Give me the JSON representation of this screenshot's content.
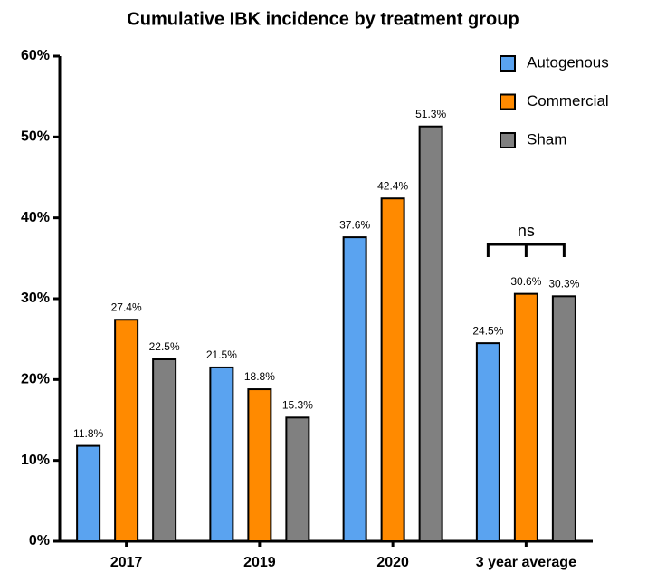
{
  "chart_data": {
    "type": "bar",
    "title": "Cumulative IBK incidence by treatment group",
    "categories": [
      "2017",
      "2019",
      "2020",
      "3 year average"
    ],
    "series": [
      {
        "name": "Autogenous",
        "color": "#5aa3f0",
        "values": [
          11.8,
          21.5,
          37.6,
          24.5
        ],
        "value_labels": [
          "11.8%",
          "21.5%",
          "37.6%",
          "24.5%"
        ]
      },
      {
        "name": "Commercial",
        "color": "#ff8a00",
        "values": [
          27.4,
          18.8,
          42.4,
          30.6
        ],
        "value_labels": [
          "27.4%",
          "18.8%",
          "42.4%",
          "30.6%"
        ]
      },
      {
        "name": "Sham",
        "color": "#808080",
        "values": [
          22.5,
          15.3,
          51.3,
          30.3
        ],
        "value_labels": [
          "22.5%",
          "15.3%",
          "51.3%",
          "30.3%"
        ]
      }
    ],
    "ylim": [
      0,
      60
    ],
    "yticks": [
      {
        "value": 0,
        "label": "0%"
      },
      {
        "value": 10,
        "label": "10%"
      },
      {
        "value": 20,
        "label": "20%"
      },
      {
        "value": 30,
        "label": "30%"
      },
      {
        "value": 40,
        "label": "40%"
      },
      {
        "value": 50,
        "label": "50%"
      },
      {
        "value": 60,
        "label": "60%"
      }
    ],
    "annotation": "ns",
    "legend": "top-right"
  }
}
